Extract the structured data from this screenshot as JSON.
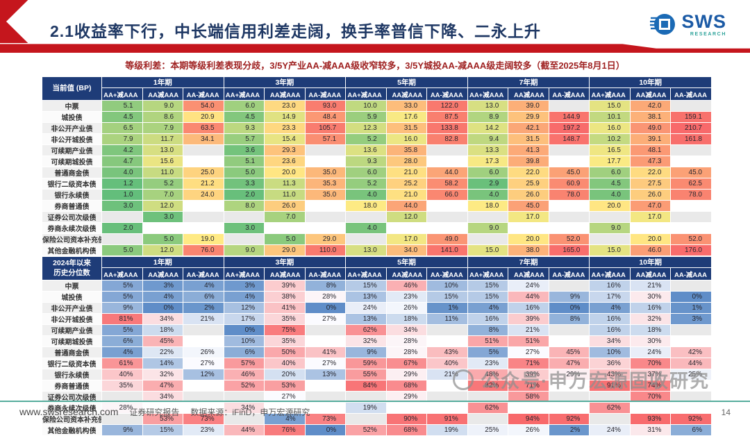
{
  "header": {
    "title": "2.1收益率下行，中长端信用利差走阔，换手率普信下降、二永上升",
    "logo": {
      "text": "SWS",
      "sub": "RESEARCH"
    }
  },
  "subtitle": "等级利差：本期等级利差表现分歧，3/5Y产业AA-减AAA级收窄较多，3/5Y城投AA-减AAA级走阔较多（截至2025年8月1日）",
  "table": {
    "tenors": [
      "1年期",
      "3年期",
      "5年期",
      "7年期",
      "10年期"
    ],
    "rating_cols": [
      "AA+减AAA",
      "AA减AAA",
      "AA-减AAA"
    ],
    "row_labels": [
      "中票",
      "城投债",
      "非公开产业债",
      "非公开城投债",
      "可续期产业债",
      "可续期城投债",
      "普通商金债",
      "银行二级资本债",
      "银行永续债",
      "券商普通债",
      "证券公司次级债",
      "券商永续次级债",
      "保险公司资本补充债",
      "其他金融机构债"
    ],
    "current": {
      "corner_lines": [
        "当前值 (BP)"
      ],
      "format": "bp",
      "rows": [
        [
          5.1,
          9.0,
          54.0,
          6.0,
          23.0,
          93.0,
          10.0,
          33.0,
          122.0,
          13.0,
          39.0,
          null,
          15.0,
          42.0,
          null
        ],
        [
          4.5,
          8.6,
          20.9,
          4.5,
          14.9,
          48.4,
          5.9,
          17.6,
          87.5,
          8.9,
          29.9,
          144.9,
          10.1,
          38.1,
          159.1
        ],
        [
          6.5,
          7.9,
          63.5,
          9.3,
          23.3,
          105.7,
          12.3,
          31.5,
          133.8,
          14.2,
          42.1,
          197.2,
          16.0,
          49.0,
          210.7
        ],
        [
          7.9,
          11.7,
          34.1,
          5.7,
          15.4,
          57.1,
          5.2,
          16.0,
          82.8,
          9.4,
          31.5,
          148.7,
          10.2,
          39.1,
          161.8
        ],
        [
          4.2,
          13.0,
          null,
          3.6,
          29.3,
          null,
          13.6,
          35.8,
          null,
          13.3,
          41.3,
          null,
          16.5,
          48.1,
          null
        ],
        [
          4.7,
          15.6,
          null,
          5.1,
          23.6,
          null,
          9.3,
          28.0,
          null,
          17.3,
          39.8,
          null,
          17.7,
          47.3,
          null
        ],
        [
          4.0,
          11.0,
          25.0,
          5.0,
          20.0,
          35.0,
          6.0,
          21.0,
          44.0,
          6.0,
          22.0,
          45.0,
          6.0,
          22.0,
          45.0
        ],
        [
          1.2,
          5.2,
          21.2,
          3.3,
          11.3,
          35.3,
          5.2,
          25.2,
          58.2,
          2.9,
          25.9,
          60.9,
          4.5,
          27.5,
          62.5
        ],
        [
          1.0,
          7.0,
          24.0,
          2.0,
          11.0,
          35.0,
          4.0,
          21.0,
          66.0,
          4.0,
          26.0,
          78.0,
          4.0,
          26.0,
          78.0
        ],
        [
          3.0,
          12.0,
          null,
          8.0,
          26.0,
          null,
          18.0,
          44.0,
          null,
          18.0,
          45.0,
          null,
          20.0,
          47.0,
          null
        ],
        [
          null,
          3.0,
          null,
          null,
          7.0,
          null,
          null,
          12.0,
          null,
          null,
          17.0,
          null,
          null,
          17.0,
          null
        ],
        [
          2.0,
          null,
          null,
          3.0,
          null,
          null,
          4.0,
          null,
          null,
          9.0,
          null,
          null,
          9.0,
          null,
          null
        ],
        [
          null,
          5.0,
          19.0,
          null,
          5.0,
          29.0,
          null,
          17.0,
          49.0,
          null,
          20.0,
          52.0,
          null,
          20.0,
          52.0
        ],
        [
          5.0,
          12.0,
          76.0,
          9.0,
          29.0,
          110.0,
          13.0,
          34.0,
          141.0,
          15.0,
          38.0,
          165.0,
          15.0,
          46.0,
          176.0
        ]
      ]
    },
    "percentile": {
      "corner_lines": [
        "2024年以来",
        "历史分位数"
      ],
      "format": "percent",
      "rows": [
        [
          5,
          3,
          4,
          3,
          39,
          8,
          15,
          46,
          10,
          15,
          24,
          null,
          16,
          21,
          null
        ],
        [
          5,
          4,
          6,
          4,
          38,
          28,
          13,
          23,
          15,
          15,
          44,
          9,
          17,
          30,
          0
        ],
        [
          9,
          0,
          2,
          12,
          41,
          0,
          24,
          26,
          1,
          4,
          16,
          0,
          4,
          16,
          1
        ],
        [
          81,
          34,
          21,
          17,
          35,
          27,
          13,
          18,
          11,
          16,
          39,
          8,
          16,
          32,
          3
        ],
        [
          5,
          18,
          null,
          0,
          75,
          null,
          62,
          34,
          null,
          8,
          21,
          null,
          16,
          18,
          null
        ],
        [
          6,
          45,
          null,
          10,
          35,
          null,
          32,
          28,
          null,
          51,
          51,
          null,
          34,
          30,
          null
        ],
        [
          4,
          22,
          26,
          6,
          50,
          41,
          9,
          28,
          43,
          5,
          27,
          45,
          10,
          24,
          42
        ],
        [
          61,
          14,
          27,
          57,
          40,
          27,
          59,
          67,
          40,
          23,
          71,
          47,
          36,
          70,
          44
        ],
        [
          40,
          32,
          12,
          46,
          20,
          13,
          55,
          29,
          21,
          48,
          39,
          29,
          43,
          37,
          25
        ],
        [
          35,
          47,
          null,
          52,
          53,
          null,
          84,
          68,
          null,
          82,
          71,
          null,
          91,
          74,
          null
        ],
        [
          null,
          34,
          null,
          null,
          27,
          null,
          null,
          29,
          null,
          null,
          58,
          null,
          null,
          70,
          null
        ],
        [
          28,
          null,
          null,
          34,
          null,
          null,
          19,
          null,
          null,
          62,
          null,
          null,
          62,
          null,
          null
        ],
        [
          null,
          53,
          73,
          null,
          4,
          73,
          null,
          90,
          91,
          null,
          94,
          92,
          null,
          93,
          92
        ],
        [
          9,
          15,
          23,
          44,
          76,
          0,
          52,
          68,
          19,
          25,
          26,
          2,
          24,
          31,
          6
        ]
      ]
    }
  },
  "watermark": {
    "text": "公众号·申万宏源固收研究"
  },
  "footer": {
    "website": "www.swsresearch.com",
    "report_type": "证券研究报告",
    "source": "数据来源：iFinD，申万宏源研究",
    "page": "14"
  },
  "colors": {
    "navy": "#1e3c78",
    "accent_red": "#c5161d",
    "teal_line": "#55ac9c",
    "scale_current": [
      "#63be7b",
      "#ffeb84",
      "#f8696b"
    ],
    "scale_percentile": [
      "#5a8ac6",
      "#fcfcff",
      "#f8696b"
    ],
    "blank_odd": "#e9e9e9",
    "blank_even": "#ffffff",
    "label_odd": "#efefef",
    "label_even": "#fbfbfb"
  }
}
